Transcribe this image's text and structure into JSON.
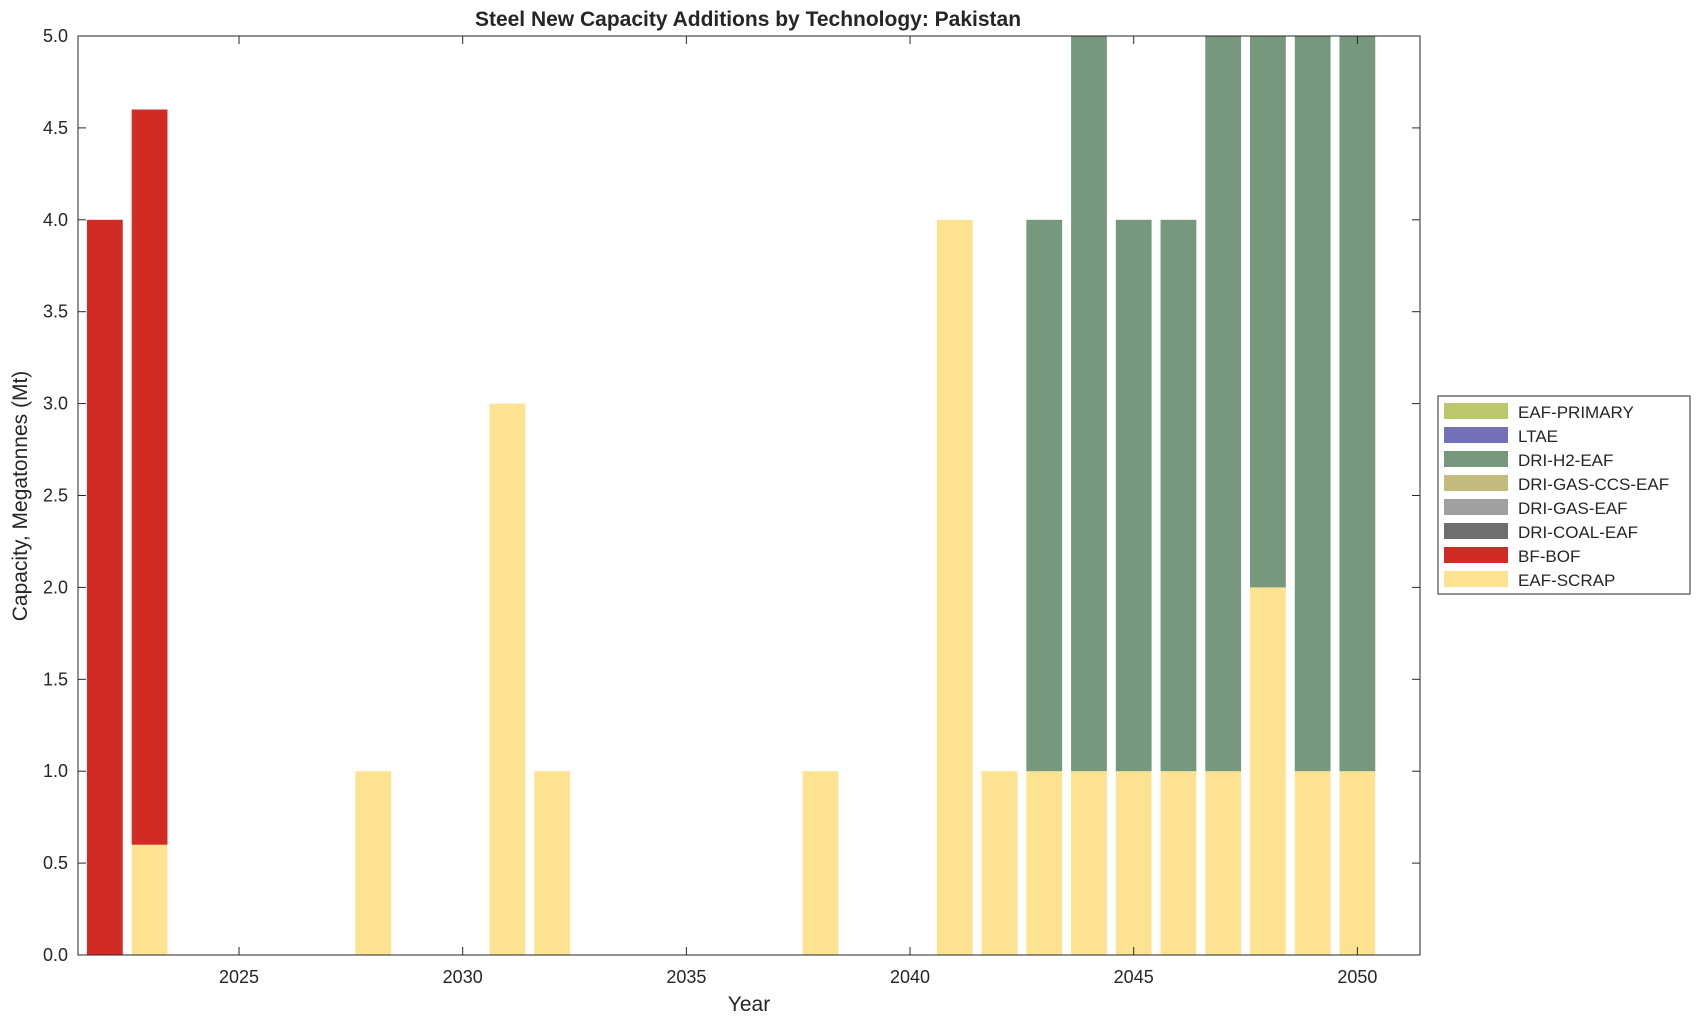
{
  "chart_data": {
    "type": "bar",
    "stacked": true,
    "title": "Steel New Capacity Additions by Technology: Pakistan",
    "xlabel": "Year",
    "ylabel": "Capacity, Megatonnes (Mt)",
    "xlim": [
      2021.4,
      2051.4
    ],
    "ylim": [
      0,
      5
    ],
    "xticks": [
      2025,
      2030,
      2035,
      2040,
      2045,
      2050
    ],
    "yticks": [
      0,
      0.5,
      1,
      1.5,
      2,
      2.5,
      3,
      3.5,
      4,
      4.5,
      5
    ],
    "ytick_labels": [
      "0.0",
      "0.5",
      "1.0",
      "1.5",
      "2.0",
      "2.5",
      "3.0",
      "3.5",
      "4.0",
      "4.5",
      "5.0"
    ],
    "legend_position": "right",
    "grid": false,
    "categories": [
      2022,
      2023,
      2024,
      2025,
      2026,
      2027,
      2028,
      2029,
      2030,
      2031,
      2032,
      2033,
      2034,
      2035,
      2036,
      2037,
      2038,
      2039,
      2040,
      2041,
      2042,
      2043,
      2044,
      2045,
      2046,
      2047,
      2048,
      2049,
      2050
    ],
    "series": [
      {
        "name": "EAF-SCRAP",
        "color": "#fde391",
        "values": [
          0,
          0.6,
          0,
          0,
          0,
          0,
          1,
          0,
          0,
          3,
          1,
          0,
          0,
          0,
          0,
          0,
          1,
          0,
          0,
          4,
          1,
          1,
          1,
          1,
          1,
          1,
          2,
          1,
          1
        ]
      },
      {
        "name": "BF-BOF",
        "color": "#d22a25",
        "values": [
          4,
          4,
          0,
          0,
          0,
          0,
          0,
          0,
          0,
          0,
          0,
          0,
          0,
          0,
          0,
          0,
          0,
          0,
          0,
          0,
          0,
          0,
          0,
          0,
          0,
          0,
          0,
          0,
          0
        ]
      },
      {
        "name": "DRI-COAL-EAF",
        "color": "#6e6e6e",
        "values": [
          0,
          0,
          0,
          0,
          0,
          0,
          0,
          0,
          0,
          0,
          0,
          0,
          0,
          0,
          0,
          0,
          0,
          0,
          0,
          0,
          0,
          0,
          0,
          0,
          0,
          0,
          0,
          0,
          0
        ]
      },
      {
        "name": "DRI-GAS-EAF",
        "color": "#a0a0a0",
        "values": [
          0,
          0,
          0,
          0,
          0,
          0,
          0,
          0,
          0,
          0,
          0,
          0,
          0,
          0,
          0,
          0,
          0,
          0,
          0,
          0,
          0,
          0,
          0,
          0,
          0,
          0,
          0,
          0,
          0
        ]
      },
      {
        "name": "DRI-GAS-CCS-EAF",
        "color": "#c4bb7e",
        "values": [
          0,
          0,
          0,
          0,
          0,
          0,
          0,
          0,
          0,
          0,
          0,
          0,
          0,
          0,
          0,
          0,
          0,
          0,
          0,
          0,
          0,
          0,
          0,
          0,
          0,
          0,
          0,
          0,
          0
        ]
      },
      {
        "name": "DRI-H2-EAF",
        "color": "#76987c",
        "values": [
          0,
          0,
          0,
          0,
          0,
          0,
          0,
          0,
          0,
          0,
          0,
          0,
          0,
          0,
          0,
          0,
          0,
          0,
          0,
          0,
          0,
          3,
          4,
          3,
          3,
          4,
          3,
          4,
          4
        ]
      },
      {
        "name": "LTAE",
        "color": "#7470b8",
        "values": [
          0,
          0,
          0,
          0,
          0,
          0,
          0,
          0,
          0,
          0,
          0,
          0,
          0,
          0,
          0,
          0,
          0,
          0,
          0,
          0,
          0,
          0,
          0,
          0,
          0,
          0,
          0,
          0,
          0
        ]
      },
      {
        "name": "EAF-PRIMARY",
        "color": "#bcc76c",
        "values": [
          0,
          0,
          0,
          0,
          0,
          0,
          0,
          0,
          0,
          0,
          0,
          0,
          0,
          0,
          0,
          0,
          0,
          0,
          0,
          0,
          0,
          0,
          0,
          0,
          0,
          0,
          0,
          0,
          0
        ]
      }
    ],
    "legend_order": [
      "EAF-PRIMARY",
      "LTAE",
      "DRI-H2-EAF",
      "DRI-GAS-CCS-EAF",
      "DRI-GAS-EAF",
      "DRI-COAL-EAF",
      "BF-BOF",
      "EAF-SCRAP"
    ]
  }
}
